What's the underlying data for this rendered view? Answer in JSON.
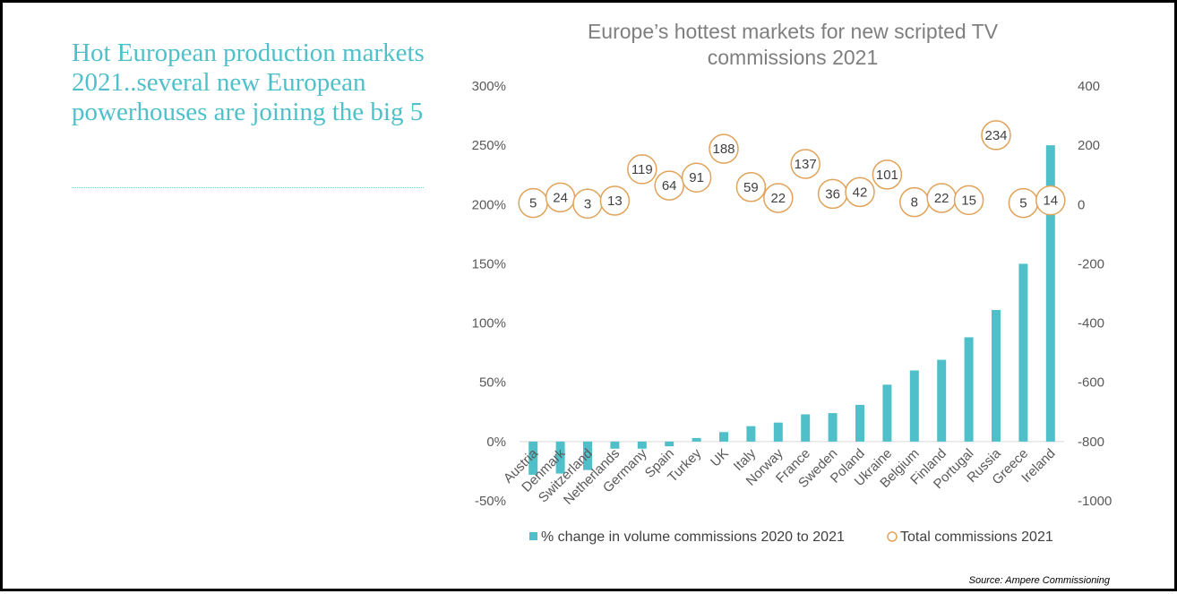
{
  "headline": "Hot European production markets 2021..several new European powerhouses are joining the big 5",
  "source": "Source: Ampere Commissioning",
  "colors": {
    "bar": "#4fc0c9",
    "marker": "#e0a35a",
    "headline": "#4fc0c9",
    "axis": "#d9d9d9"
  },
  "chart_data": {
    "type": "bar",
    "title": "Europe’s hottest markets for new scripted TV commissions 2021",
    "title_lines": [
      "Europe’s hottest markets for new scripted TV",
      "commissions 2021"
    ],
    "categories": [
      "Austria",
      "Denmark",
      "Switzerland",
      "Netherlands",
      "Germany",
      "Spain",
      "Turkey",
      "UK",
      "Italy",
      "Norway",
      "France",
      "Sweden",
      "Poland",
      "Ukraine",
      "Belgium",
      "Finland",
      "Portugal",
      "Russia",
      "Greece",
      "Ireland"
    ],
    "series": [
      {
        "name": "% change in volume commissions 2020 to 2021",
        "type": "bar",
        "axis": "left",
        "values": [
          -28,
          -27,
          -24,
          -6,
          -6,
          -4,
          3,
          8,
          13,
          16,
          23,
          24,
          31,
          48,
          60,
          69,
          88,
          111,
          150,
          250
        ]
      },
      {
        "name": "Total commissions 2021",
        "type": "scatter",
        "axis": "right",
        "values": [
          5,
          24,
          3,
          13,
          119,
          64,
          91,
          188,
          59,
          22,
          137,
          36,
          42,
          101,
          8,
          22,
          15,
          234,
          5,
          14
        ]
      }
    ],
    "y_left": {
      "min": -50,
      "max": 300,
      "ticks": [
        -50,
        0,
        50,
        100,
        150,
        200,
        250,
        300
      ],
      "ticklabels": [
        "-50%",
        "0%",
        "50%",
        "100%",
        "150%",
        "200%",
        "250%",
        "300%"
      ]
    },
    "y_right": {
      "min": -1000,
      "max": 400,
      "ticks": [
        -1000,
        -800,
        -600,
        -400,
        -200,
        0,
        200,
        400
      ],
      "ticklabels": [
        "-1000",
        "-800",
        "-600",
        "-400",
        "-200",
        "0",
        "200",
        "400"
      ]
    },
    "legend_position": "bottom"
  }
}
